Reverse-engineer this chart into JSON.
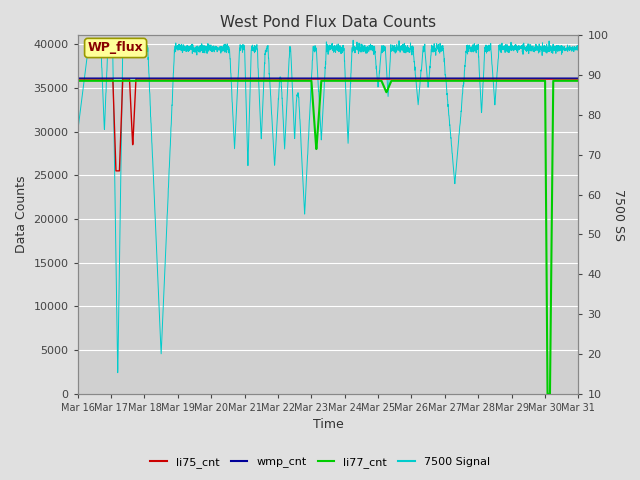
{
  "title": "West Pond Flux Data Counts",
  "xlabel": "Time",
  "ylabel_left": "Data Counts",
  "ylabel_right": "7500 SS",
  "ylim_left": [
    0,
    41000
  ],
  "ylim_right": [
    10,
    100
  ],
  "bg_color": "#e0e0e0",
  "plot_bg_color": "#d0d0d0",
  "annotation_box_text": "WP_flux",
  "annotation_box_color": "#ffff99",
  "annotation_box_edge_color": "#999900",
  "li75_color": "#cc0000",
  "wmp_color": "#000099",
  "li77_color": "#00cc00",
  "signal_color": "#00cccc",
  "legend_items": [
    "li75_cnt",
    "wmp_cnt",
    "li77_cnt",
    "7500 Signal"
  ],
  "x_tick_labels": [
    "Mar 16",
    "Mar 17",
    "Mar 18",
    "Mar 19",
    "Mar 20",
    "Mar 21",
    "Mar 22",
    "Mar 23",
    "Mar 24",
    "Mar 25",
    "Mar 26",
    "Mar 27",
    "Mar 28",
    "Mar 29",
    "Mar 30",
    "Mar 31"
  ],
  "yticks_left": [
    0,
    5000,
    10000,
    15000,
    20000,
    25000,
    30000,
    35000,
    40000
  ],
  "yticks_right": [
    10,
    20,
    30,
    40,
    50,
    60,
    70,
    80,
    90,
    100
  ],
  "signal_noise_std": 250,
  "signal_base_level": 39500,
  "li77_flat": 35800,
  "li75_flat": 36000,
  "wmp_flat": 36100
}
